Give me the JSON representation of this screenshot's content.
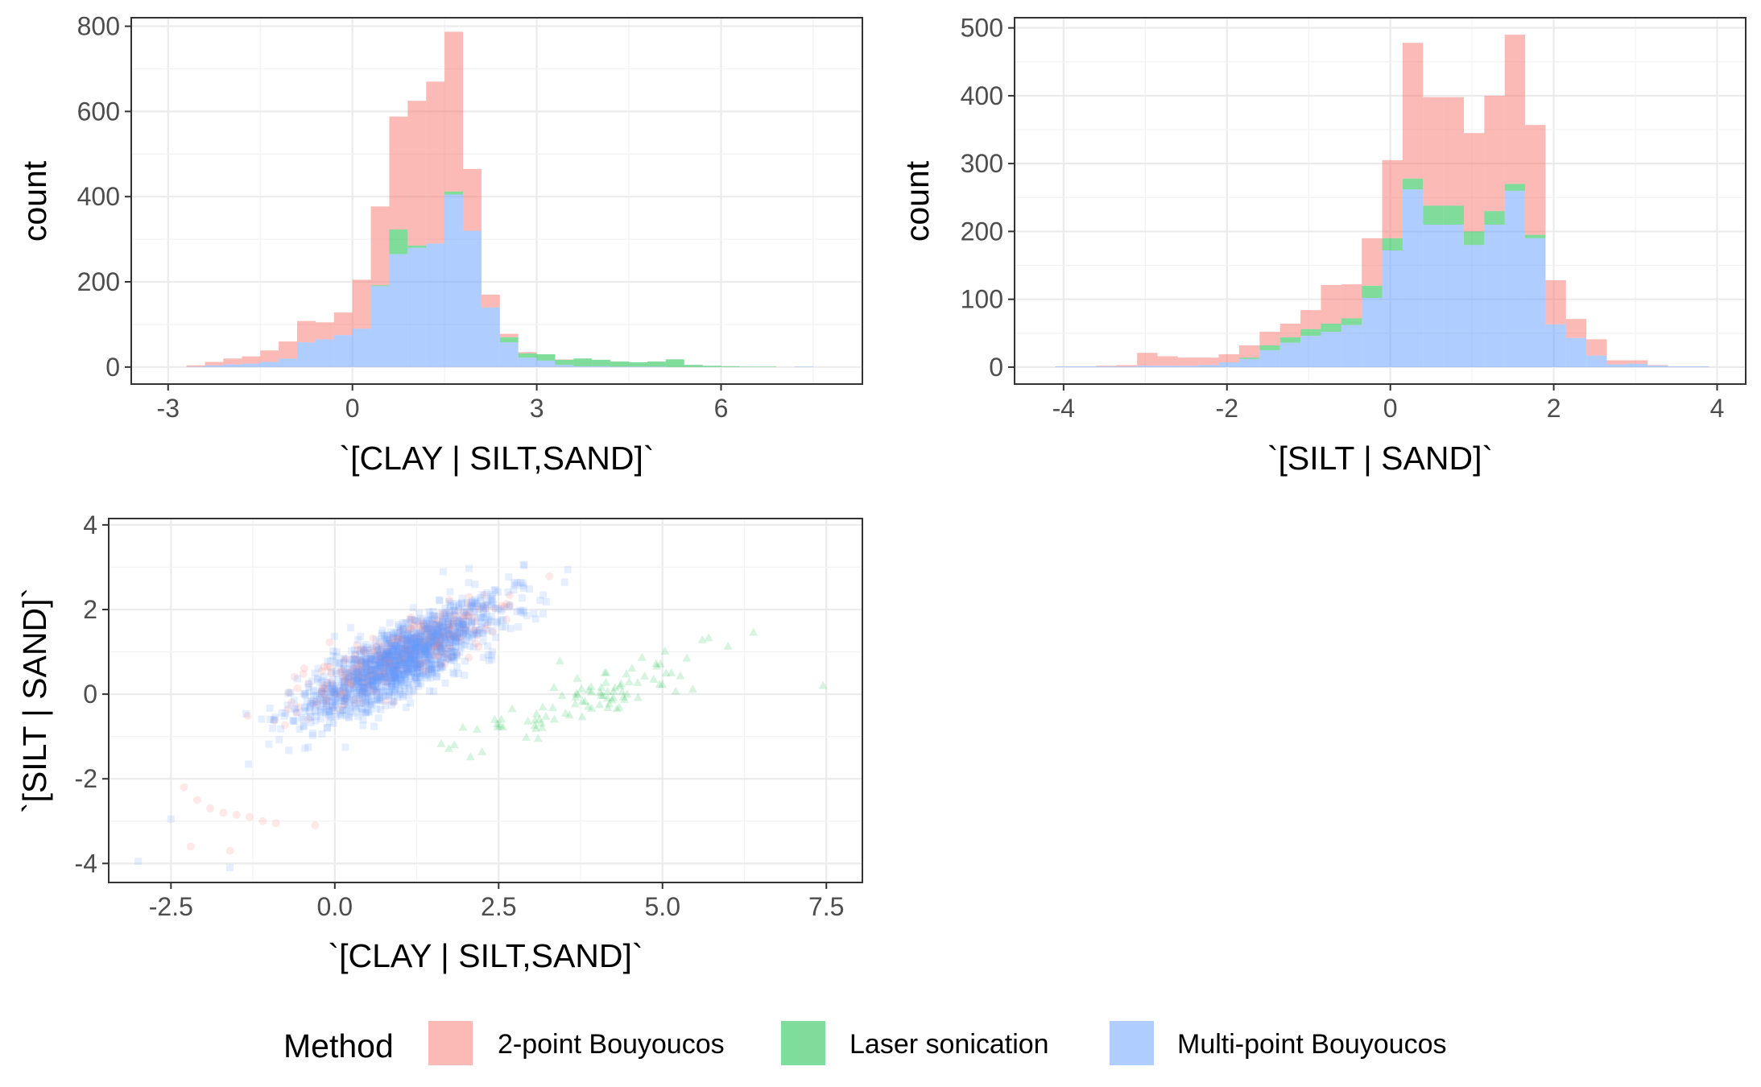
{
  "chart_data": [
    {
      "type": "histogram",
      "stacked": true,
      "xlabel": "`[CLAY | SILT,SAND]`",
      "ylabel": "count",
      "xlim": [
        -3.6,
        8.3
      ],
      "ylim": [
        -40,
        820
      ],
      "xticks": [
        -3,
        0,
        3,
        6
      ],
      "yticks": [
        0,
        200,
        400,
        600,
        800
      ],
      "grid": true,
      "bins": [
        {
          "x0": -2.7,
          "x1": -2.4,
          "values": [
            3,
            0,
            1
          ]
        },
        {
          "x0": -2.4,
          "x1": -2.1,
          "values": [
            8,
            0,
            4
          ]
        },
        {
          "x0": -2.1,
          "x1": -1.8,
          "values": [
            14,
            0,
            6
          ]
        },
        {
          "x0": -1.8,
          "x1": -1.5,
          "values": [
            17,
            0,
            8
          ]
        },
        {
          "x0": -1.5,
          "x1": -1.2,
          "values": [
            27,
            0,
            12
          ]
        },
        {
          "x0": -1.2,
          "x1": -0.9,
          "values": [
            40,
            0,
            20
          ]
        },
        {
          "x0": -0.9,
          "x1": -0.6,
          "values": [
            50,
            0,
            58
          ]
        },
        {
          "x0": -0.6,
          "x1": -0.3,
          "values": [
            40,
            0,
            65
          ]
        },
        {
          "x0": -0.3,
          "x1": 0.0,
          "values": [
            53,
            0,
            75
          ]
        },
        {
          "x0": 0.0,
          "x1": 0.3,
          "values": [
            115,
            0,
            90
          ]
        },
        {
          "x0": 0.3,
          "x1": 0.6,
          "values": [
            185,
            2,
            190
          ]
        },
        {
          "x0": 0.6,
          "x1": 0.9,
          "values": [
            265,
            58,
            265
          ]
        },
        {
          "x0": 0.9,
          "x1": 1.2,
          "values": [
            340,
            5,
            280
          ]
        },
        {
          "x0": 1.2,
          "x1": 1.5,
          "values": [
            380,
            0,
            290
          ]
        },
        {
          "x0": 1.5,
          "x1": 1.8,
          "values": [
            375,
            7,
            405
          ]
        },
        {
          "x0": 1.8,
          "x1": 2.1,
          "values": [
            145,
            0,
            320
          ]
        },
        {
          "x0": 2.1,
          "x1": 2.4,
          "values": [
            30,
            0,
            140
          ]
        },
        {
          "x0": 2.4,
          "x1": 2.7,
          "values": [
            8,
            12,
            58
          ]
        },
        {
          "x0": 2.7,
          "x1": 3.0,
          "values": [
            3,
            10,
            22
          ]
        },
        {
          "x0": 3.0,
          "x1": 3.3,
          "values": [
            0,
            15,
            15
          ]
        },
        {
          "x0": 3.3,
          "x1": 3.6,
          "values": [
            1,
            12,
            5
          ]
        },
        {
          "x0": 3.6,
          "x1": 3.9,
          "values": [
            0,
            18,
            2
          ]
        },
        {
          "x0": 3.9,
          "x1": 4.2,
          "values": [
            0,
            15,
            2
          ]
        },
        {
          "x0": 4.2,
          "x1": 4.5,
          "values": [
            0,
            12,
            1
          ]
        },
        {
          "x0": 4.5,
          "x1": 4.8,
          "values": [
            0,
            10,
            1
          ]
        },
        {
          "x0": 4.8,
          "x1": 5.1,
          "values": [
            0,
            12,
            1
          ]
        },
        {
          "x0": 5.1,
          "x1": 5.4,
          "values": [
            0,
            18,
            0
          ]
        },
        {
          "x0": 5.4,
          "x1": 5.7,
          "values": [
            0,
            5,
            0
          ]
        },
        {
          "x0": 5.7,
          "x1": 6.0,
          "values": [
            0,
            3,
            0
          ]
        },
        {
          "x0": 6.0,
          "x1": 6.3,
          "values": [
            0,
            2,
            0
          ]
        },
        {
          "x0": 6.3,
          "x1": 6.6,
          "values": [
            0,
            1,
            0
          ]
        },
        {
          "x0": 6.6,
          "x1": 6.9,
          "values": [
            0,
            1,
            0
          ]
        },
        {
          "x0": 6.9,
          "x1": 7.2,
          "values": [
            0,
            0,
            0
          ]
        },
        {
          "x0": 7.2,
          "x1": 7.5,
          "values": [
            0,
            0,
            1
          ]
        }
      ]
    },
    {
      "type": "histogram",
      "stacked": true,
      "xlabel": "`[SILT | SAND]`",
      "ylabel": "count",
      "xlim": [
        -4.6,
        4.35
      ],
      "ylim": [
        -25,
        515
      ],
      "xticks": [
        -4,
        -2,
        0,
        2,
        4
      ],
      "yticks": [
        0,
        100,
        200,
        300,
        400,
        500
      ],
      "grid": true,
      "bins": [
        {
          "x0": -4.1,
          "x1": -3.85,
          "values": [
            0,
            0,
            1
          ]
        },
        {
          "x0": -3.85,
          "x1": -3.6,
          "values": [
            0,
            0,
            1
          ]
        },
        {
          "x0": -3.6,
          "x1": -3.35,
          "values": [
            1,
            0,
            1
          ]
        },
        {
          "x0": -3.35,
          "x1": -3.1,
          "values": [
            2,
            0,
            1
          ]
        },
        {
          "x0": -3.1,
          "x1": -2.85,
          "values": [
            19,
            0,
            2
          ]
        },
        {
          "x0": -2.85,
          "x1": -2.6,
          "values": [
            14,
            0,
            2
          ]
        },
        {
          "x0": -2.6,
          "x1": -2.35,
          "values": [
            12,
            0,
            2
          ]
        },
        {
          "x0": -2.35,
          "x1": -2.1,
          "values": [
            11,
            0,
            3
          ]
        },
        {
          "x0": -2.1,
          "x1": -1.85,
          "values": [
            12,
            0,
            7
          ]
        },
        {
          "x0": -1.85,
          "x1": -1.6,
          "values": [
            18,
            2,
            12
          ]
        },
        {
          "x0": -1.6,
          "x1": -1.35,
          "values": [
            20,
            7,
            25
          ]
        },
        {
          "x0": -1.35,
          "x1": -1.1,
          "values": [
            20,
            8,
            36
          ]
        },
        {
          "x0": -1.1,
          "x1": -0.85,
          "values": [
            28,
            10,
            46
          ]
        },
        {
          "x0": -0.85,
          "x1": -0.6,
          "values": [
            57,
            12,
            52
          ]
        },
        {
          "x0": -0.6,
          "x1": -0.35,
          "values": [
            50,
            10,
            62
          ]
        },
        {
          "x0": -0.35,
          "x1": -0.1,
          "values": [
            70,
            18,
            102
          ]
        },
        {
          "x0": -0.1,
          "x1": 0.15,
          "values": [
            115,
            18,
            172
          ]
        },
        {
          "x0": 0.15,
          "x1": 0.4,
          "values": [
            200,
            16,
            262
          ]
        },
        {
          "x0": 0.4,
          "x1": 0.65,
          "values": [
            160,
            28,
            210
          ]
        },
        {
          "x0": 0.65,
          "x1": 0.9,
          "values": [
            160,
            28,
            210
          ]
        },
        {
          "x0": 0.9,
          "x1": 1.15,
          "values": [
            145,
            20,
            180
          ]
        },
        {
          "x0": 1.15,
          "x1": 1.4,
          "values": [
            170,
            20,
            210
          ]
        },
        {
          "x0": 1.4,
          "x1": 1.65,
          "values": [
            220,
            10,
            260
          ]
        },
        {
          "x0": 1.65,
          "x1": 1.9,
          "values": [
            162,
            5,
            190
          ]
        },
        {
          "x0": 1.9,
          "x1": 2.15,
          "values": [
            65,
            0,
            63
          ]
        },
        {
          "x0": 2.15,
          "x1": 2.4,
          "values": [
            28,
            0,
            43
          ]
        },
        {
          "x0": 2.4,
          "x1": 2.65,
          "values": [
            24,
            0,
            17
          ]
        },
        {
          "x0": 2.65,
          "x1": 2.9,
          "values": [
            6,
            0,
            4
          ]
        },
        {
          "x0": 2.9,
          "x1": 3.15,
          "values": [
            5,
            0,
            5
          ]
        },
        {
          "x0": 3.15,
          "x1": 3.4,
          "values": [
            1,
            0,
            2
          ]
        },
        {
          "x0": 3.4,
          "x1": 3.65,
          "values": [
            0,
            0,
            1
          ]
        },
        {
          "x0": 3.65,
          "x1": 3.9,
          "values": [
            0,
            0,
            1
          ]
        }
      ]
    },
    {
      "type": "scatter",
      "xlabel": "`[CLAY | SILT,SAND]`",
      "ylabel": "`[SILT | SAND]`",
      "xlim": [
        -3.45,
        8.05
      ],
      "ylim": [
        -4.45,
        4.15
      ],
      "xticks": [
        -2.5,
        0.0,
        2.5,
        5.0,
        7.5
      ],
      "xtick_labels": [
        "-2.5",
        "0.0",
        "2.5",
        "5.0",
        "7.5"
      ],
      "yticks": [
        -4,
        -2,
        0,
        2,
        4
      ],
      "grid": true,
      "series": [
        {
          "cluster": [
            1.0,
            0.9,
            0.7,
            0.6,
            0.85
          ],
          "n": 520,
          "marker": "circle"
        },
        {
          "cluster": [
            4.0,
            0.0,
            1.0,
            0.6,
            0.88
          ],
          "n": 95,
          "marker": "triangle"
        },
        {
          "cluster": [
            1.0,
            0.8,
            0.75,
            0.7,
            0.8
          ],
          "n": 1400,
          "marker": "square"
        }
      ],
      "tail": {
        "x": [
          -2.3,
          -2.1,
          -1.9,
          -1.7,
          -1.5,
          -1.3,
          -1.1,
          -0.9,
          -2.2,
          -1.6,
          -0.3,
          -2.5,
          -3.0,
          -1.6
        ],
        "y": [
          -2.2,
          -2.5,
          -2.7,
          -2.8,
          -2.85,
          -2.9,
          -3.0,
          -3.05,
          -3.6,
          -3.7,
          -3.1,
          -2.95,
          -3.95,
          -4.1
        ]
      }
    }
  ],
  "legend": {
    "title": "Method",
    "placement": "bottom",
    "items": [
      {
        "label": "2-point Bouyoucos",
        "color": "#F8766D"
      },
      {
        "label": "Laser sonication",
        "color": "#00BA38"
      },
      {
        "label": "Multi-point Bouyoucos",
        "color": "#619CFF"
      }
    ]
  },
  "style": {
    "fill_alpha": 0.5,
    "point_alpha": 0.16,
    "grid_major": "#ebebeb",
    "grid_minor": "#f3f3f3",
    "panel_border": "#333333"
  }
}
